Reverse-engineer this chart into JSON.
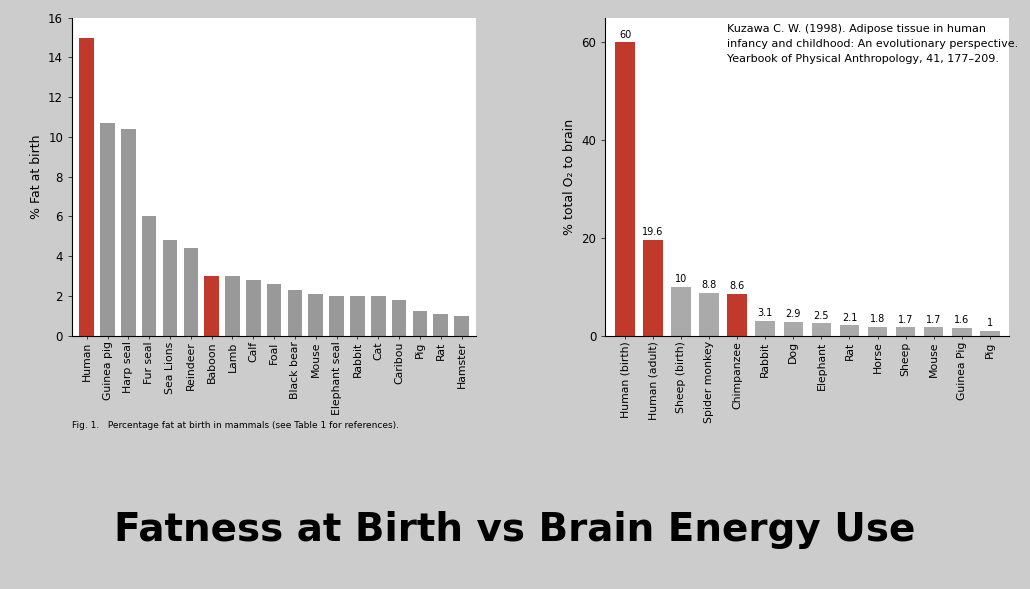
{
  "chart1": {
    "categories": [
      "Human",
      "Guinea pig",
      "Harp seal",
      "Fur seal",
      "Sea Lions",
      "Reindeer",
      "Baboon",
      "Lamb",
      "Calf",
      "Foal",
      "Black bear",
      "Mouse",
      "Elephant seal",
      "Rabbit",
      "Cat",
      "Caribou",
      "Pig",
      "Rat",
      "Hamster"
    ],
    "values": [
      15.0,
      10.7,
      10.4,
      6.0,
      4.8,
      4.4,
      3.0,
      3.0,
      2.8,
      2.6,
      2.3,
      2.1,
      2.0,
      2.0,
      2.0,
      1.8,
      1.25,
      1.1,
      1.0
    ],
    "colors": [
      "#c0392b",
      "#999999",
      "#999999",
      "#999999",
      "#999999",
      "#999999",
      "#c0392b",
      "#999999",
      "#999999",
      "#999999",
      "#999999",
      "#999999",
      "#999999",
      "#999999",
      "#999999",
      "#999999",
      "#999999",
      "#999999",
      "#999999"
    ],
    "ylabel": "% Fat at birth",
    "ylim": [
      0,
      16
    ],
    "yticks": [
      0,
      2,
      4,
      6,
      8,
      10,
      12,
      14,
      16
    ],
    "caption": "Fig. 1.   Percentage fat at birth in mammals (see Table 1 for references)."
  },
  "chart2": {
    "categories": [
      "Human (birth)",
      "Human (adult)",
      "Sheep (birth)",
      "Spider monkey",
      "Chimpanzee",
      "Rabbit",
      "Dog",
      "Elephant",
      "Rat",
      "Horse",
      "Sheep",
      "Mouse",
      "Guinea Pig",
      "Pig"
    ],
    "values": [
      60,
      19.6,
      10,
      8.8,
      8.6,
      3.1,
      2.9,
      2.5,
      2.1,
      1.8,
      1.7,
      1.7,
      1.6,
      1.0
    ],
    "colors": [
      "#c0392b",
      "#c0392b",
      "#aaaaaa",
      "#aaaaaa",
      "#c0392b",
      "#aaaaaa",
      "#aaaaaa",
      "#aaaaaa",
      "#aaaaaa",
      "#aaaaaa",
      "#aaaaaa",
      "#aaaaaa",
      "#aaaaaa",
      "#aaaaaa"
    ],
    "labels": [
      "60",
      "19.6",
      "10",
      "8.8",
      "8.6",
      "3.1",
      "2.9",
      "2.5",
      "2.1",
      "1.8",
      "1.7",
      "1.7",
      "1.6",
      "1"
    ],
    "ylabel": "% total O₂ to brain",
    "ylim": [
      0,
      65
    ],
    "yticks": [
      0,
      20,
      40,
      60
    ],
    "reference": "Kuzawa C. W. (1998). Adipose tissue in human\ninfancy and childhood: An evolutionary perspective.\nYearbook of Physical Anthropology, 41, 177–209."
  },
  "title": "Fatness at Birth vs Brain Energy Use",
  "background_color": "#cccccc",
  "chart_bg": "white"
}
